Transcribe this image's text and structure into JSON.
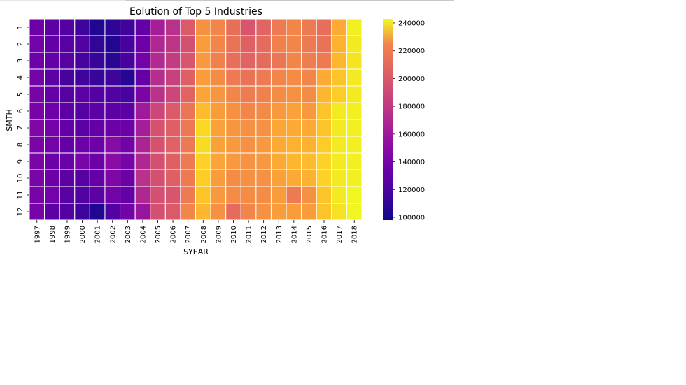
{
  "chart_data": {
    "type": "heatmap",
    "title": "Eolution of Top 5 Industries",
    "xlabel": "SYEAR",
    "ylabel": "SMTH",
    "x_categories": [
      "1997",
      "1998",
      "1999",
      "2000",
      "2001",
      "2002",
      "2003",
      "2004",
      "2005",
      "2006",
      "2007",
      "2008",
      "2009",
      "2010",
      "2011",
      "2012",
      "2013",
      "2014",
      "2015",
      "2016",
      "2017",
      "2018"
    ],
    "y_categories": [
      "1",
      "2",
      "3",
      "4",
      "5",
      "6",
      "7",
      "8",
      "9",
      "10",
      "11",
      "12"
    ],
    "colormap": "plasma",
    "color_range": [
      98000,
      243000
    ],
    "colorbar_ticks": [
      "100000",
      "120000",
      "140000",
      "160000",
      "180000",
      "200000",
      "220000",
      "240000"
    ],
    "colorbar_tick_values": [
      100000,
      120000,
      140000,
      160000,
      180000,
      200000,
      220000,
      240000
    ],
    "values": [
      [
        128000,
        122000,
        118000,
        112000,
        103000,
        107000,
        112000,
        125000,
        150000,
        160000,
        180000,
        205000,
        200000,
        190000,
        178000,
        185000,
        195000,
        200000,
        195000,
        190000,
        215000,
        240000
      ],
      [
        130000,
        125000,
        120000,
        118000,
        108000,
        104000,
        115000,
        128000,
        155000,
        162000,
        175000,
        210000,
        200000,
        192000,
        183000,
        188000,
        198000,
        200000,
        195000,
        192000,
        218000,
        238000
      ],
      [
        128000,
        125000,
        120000,
        115000,
        110000,
        106000,
        115000,
        130000,
        156000,
        165000,
        178000,
        208000,
        198000,
        190000,
        185000,
        188000,
        193000,
        200000,
        197000,
        195000,
        220000,
        236000
      ],
      [
        130000,
        122000,
        115000,
        112000,
        110000,
        112000,
        105000,
        125000,
        158000,
        168000,
        183000,
        210000,
        203000,
        195000,
        192000,
        195000,
        200000,
        203000,
        200000,
        215000,
        225000,
        238000
      ],
      [
        132000,
        125000,
        120000,
        122000,
        118000,
        118000,
        115000,
        133000,
        160000,
        170000,
        185000,
        213000,
        207000,
        200000,
        196000,
        198000,
        203000,
        205000,
        203000,
        220000,
        228000,
        238000
      ],
      [
        132000,
        128000,
        122000,
        120000,
        122000,
        122000,
        122000,
        148000,
        170000,
        180000,
        193000,
        222000,
        210000,
        205000,
        200000,
        202000,
        208000,
        212000,
        208000,
        225000,
        238000,
        240000
      ],
      [
        135000,
        130000,
        125000,
        122000,
        125000,
        128000,
        128000,
        150000,
        176000,
        183000,
        194000,
        232000,
        212000,
        207000,
        205000,
        205000,
        214000,
        215000,
        215000,
        225000,
        238000,
        240000
      ],
      [
        133000,
        130000,
        125000,
        128000,
        128000,
        138000,
        130000,
        153000,
        176000,
        184000,
        194000,
        233000,
        212000,
        208000,
        205000,
        208000,
        215000,
        218000,
        218000,
        228000,
        238000,
        240000
      ],
      [
        133000,
        128000,
        127000,
        133000,
        128000,
        140000,
        132000,
        155000,
        175000,
        183000,
        195000,
        230000,
        213000,
        208000,
        206000,
        208000,
        215000,
        220000,
        222000,
        230000,
        238000,
        240000
      ],
      [
        133000,
        128000,
        122000,
        120000,
        125000,
        135000,
        128000,
        160000,
        175000,
        183000,
        195000,
        228000,
        210000,
        203000,
        205000,
        205000,
        212000,
        215000,
        218000,
        230000,
        238000,
        240000
      ],
      [
        132000,
        130000,
        120000,
        118000,
        122000,
        130000,
        125000,
        155000,
        175000,
        178000,
        195000,
        225000,
        208000,
        203000,
        203000,
        203000,
        210000,
        195000,
        205000,
        225000,
        238000,
        242000
      ],
      [
        132000,
        122000,
        118000,
        112000,
        103000,
        118000,
        130000,
        145000,
        175000,
        180000,
        200000,
        220000,
        205000,
        188000,
        200000,
        205000,
        210000,
        210000,
        210000,
        225000,
        235000,
        242000
      ]
    ]
  }
}
